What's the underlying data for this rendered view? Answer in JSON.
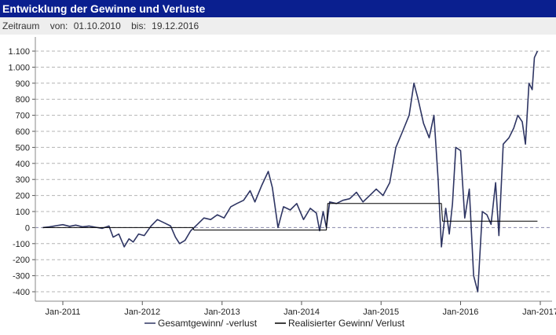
{
  "header": {
    "title": "Entwicklung der Gewinne und Verluste",
    "range_label": "Zeitraum",
    "from_label": "von:",
    "from_value": "01.10.2010",
    "to_label": "bis:",
    "to_value": "19.12.2016"
  },
  "chart_data": {
    "type": "line",
    "title": "Entwicklung der Gewinne und Verluste",
    "xlabel": "",
    "ylabel": "",
    "x_type": "date",
    "xlim": [
      "2010-10-01",
      "2016-12-19"
    ],
    "ylim": [
      -450,
      1150
    ],
    "y_ticks": [
      -400,
      -300,
      -200,
      -100,
      0,
      100,
      200,
      300,
      400,
      500,
      600,
      700,
      800,
      900,
      1000,
      1100
    ],
    "y_tick_labels": [
      "-400",
      "-300",
      "-200",
      "-100",
      "0",
      "100",
      "200",
      "300",
      "400",
      "500",
      "600",
      "700",
      "800",
      "900",
      "1.000",
      "1.100"
    ],
    "x_ticks": [
      "2011-01-01",
      "2012-01-01",
      "2013-01-01",
      "2014-01-01",
      "2015-01-01",
      "2016-01-01",
      "2017-01-01"
    ],
    "x_tick_labels": [
      "Jan-2011",
      "Jan-2012",
      "Jan-2013",
      "Jan-2014",
      "Jan-2015",
      "Jan-2016",
      "Jan-2017"
    ],
    "grid": "horizontal dashed",
    "legend_position": "bottom",
    "colors": {
      "series1": "#2e3563",
      "series2": "#000000",
      "grid": "#b4b4b4",
      "zero": "#8888aa"
    },
    "series": [
      {
        "name": "Gesamtgewinn/ -verlust",
        "points": [
          [
            "2010-10-01",
            0
          ],
          [
            "2010-11-01",
            5
          ],
          [
            "2010-12-01",
            12
          ],
          [
            "2011-01-01",
            18
          ],
          [
            "2011-02-01",
            8
          ],
          [
            "2011-03-01",
            15
          ],
          [
            "2011-04-01",
            5
          ],
          [
            "2011-05-01",
            10
          ],
          [
            "2011-06-01",
            2
          ],
          [
            "2011-07-01",
            -5
          ],
          [
            "2011-08-01",
            10
          ],
          [
            "2011-08-20",
            -60
          ],
          [
            "2011-09-15",
            -40
          ],
          [
            "2011-10-10",
            -120
          ],
          [
            "2011-11-01",
            -70
          ],
          [
            "2011-11-20",
            -90
          ],
          [
            "2011-12-15",
            -40
          ],
          [
            "2012-01-10",
            -50
          ],
          [
            "2012-02-10",
            10
          ],
          [
            "2012-03-10",
            50
          ],
          [
            "2012-04-10",
            30
          ],
          [
            "2012-05-10",
            10
          ],
          [
            "2012-06-01",
            -60
          ],
          [
            "2012-06-20",
            -100
          ],
          [
            "2012-07-15",
            -80
          ],
          [
            "2012-08-10",
            -20
          ],
          [
            "2012-09-10",
            20
          ],
          [
            "2012-10-10",
            60
          ],
          [
            "2012-11-10",
            50
          ],
          [
            "2012-12-10",
            80
          ],
          [
            "2013-01-10",
            60
          ],
          [
            "2013-02-10",
            130
          ],
          [
            "2013-03-10",
            150
          ],
          [
            "2013-04-10",
            170
          ],
          [
            "2013-05-10",
            230
          ],
          [
            "2013-06-01",
            160
          ],
          [
            "2013-07-01",
            260
          ],
          [
            "2013-08-01",
            350
          ],
          [
            "2013-08-20",
            250
          ],
          [
            "2013-09-15",
            0
          ],
          [
            "2013-10-10",
            130
          ],
          [
            "2013-11-10",
            110
          ],
          [
            "2013-12-10",
            150
          ],
          [
            "2014-01-10",
            50
          ],
          [
            "2014-02-10",
            120
          ],
          [
            "2014-03-10",
            90
          ],
          [
            "2014-03-25",
            -20
          ],
          [
            "2014-04-10",
            100
          ],
          [
            "2014-04-25",
            0
          ],
          [
            "2014-05-10",
            160
          ],
          [
            "2014-06-10",
            150
          ],
          [
            "2014-07-10",
            170
          ],
          [
            "2014-08-10",
            180
          ],
          [
            "2014-09-10",
            220
          ],
          [
            "2014-10-10",
            160
          ],
          [
            "2014-11-10",
            200
          ],
          [
            "2014-12-10",
            240
          ],
          [
            "2015-01-10",
            200
          ],
          [
            "2015-02-10",
            280
          ],
          [
            "2015-03-10",
            500
          ],
          [
            "2015-04-10",
            600
          ],
          [
            "2015-05-10",
            700
          ],
          [
            "2015-06-01",
            900
          ],
          [
            "2015-06-20",
            800
          ],
          [
            "2015-07-15",
            650
          ],
          [
            "2015-08-10",
            560
          ],
          [
            "2015-09-01",
            700
          ],
          [
            "2015-09-20",
            300
          ],
          [
            "2015-10-05",
            -120
          ],
          [
            "2015-10-25",
            120
          ],
          [
            "2015-11-10",
            -40
          ],
          [
            "2015-11-25",
            150
          ],
          [
            "2015-12-10",
            500
          ],
          [
            "2016-01-01",
            480
          ],
          [
            "2016-01-20",
            60
          ],
          [
            "2016-02-10",
            240
          ],
          [
            "2016-03-01",
            -300
          ],
          [
            "2016-03-20",
            -400
          ],
          [
            "2016-04-10",
            100
          ],
          [
            "2016-05-01",
            80
          ],
          [
            "2016-05-20",
            20
          ],
          [
            "2016-06-10",
            280
          ],
          [
            "2016-06-25",
            -50
          ],
          [
            "2016-07-15",
            520
          ],
          [
            "2016-08-10",
            560
          ],
          [
            "2016-09-01",
            620
          ],
          [
            "2016-09-20",
            700
          ],
          [
            "2016-10-10",
            660
          ],
          [
            "2016-10-25",
            520
          ],
          [
            "2016-11-10",
            900
          ],
          [
            "2016-11-25",
            860
          ],
          [
            "2016-12-05",
            1060
          ],
          [
            "2016-12-19",
            1100
          ]
        ]
      },
      {
        "name": "Realisierter Gewinn/ Verlust",
        "points": [
          [
            "2010-10-01",
            0
          ],
          [
            "2012-08-20",
            0
          ],
          [
            "2012-08-25",
            -15
          ],
          [
            "2014-04-25",
            -15
          ],
          [
            "2014-05-01",
            150
          ],
          [
            "2015-10-05",
            150
          ],
          [
            "2015-10-10",
            40
          ],
          [
            "2016-12-19",
            40
          ]
        ]
      }
    ]
  }
}
